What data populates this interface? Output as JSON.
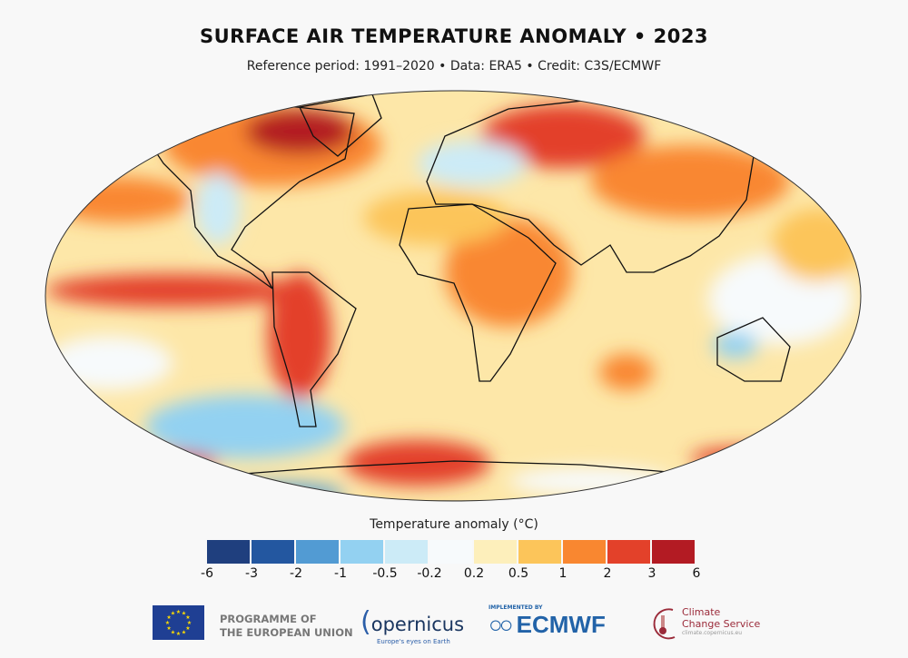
{
  "title": "SURFACE AIR TEMPERATURE ANOMALY • 2023",
  "subtitle": "Reference period: 1991–2020 • Data: ERA5 • Credit: C3S/ECMWF",
  "colorbar": {
    "title": "Temperature anomaly (°C)",
    "ticks": [
      "-6",
      "-3",
      "-2",
      "-1",
      "-0.5",
      "-0.2",
      "0.2",
      "0.5",
      "1",
      "2",
      "3",
      "6"
    ],
    "colors": [
      "#1f3f7e",
      "#2357a0",
      "#529bd3",
      "#93d1f1",
      "#ccebf7",
      "#f7fafc",
      "#fdefbb",
      "#fcc55a",
      "#f98730",
      "#e3412a",
      "#b31b23"
    ]
  },
  "logos": {
    "eu": "PROGRAMME OF THE EUROPEAN UNION",
    "eu_line1": "PROGRAMME OF",
    "eu_line2": "THE EUROPEAN UNION",
    "copernicus": "opernicus",
    "copernicus_tagline": "Europe's eyes on Earth",
    "ecmwf_implemented": "IMPLEMENTED BY",
    "ecmwf": "ECMWF",
    "c3s_line1": "Climate",
    "c3s_line2": "Change Service",
    "c3s_url": "climate.copernicus.eu"
  }
}
